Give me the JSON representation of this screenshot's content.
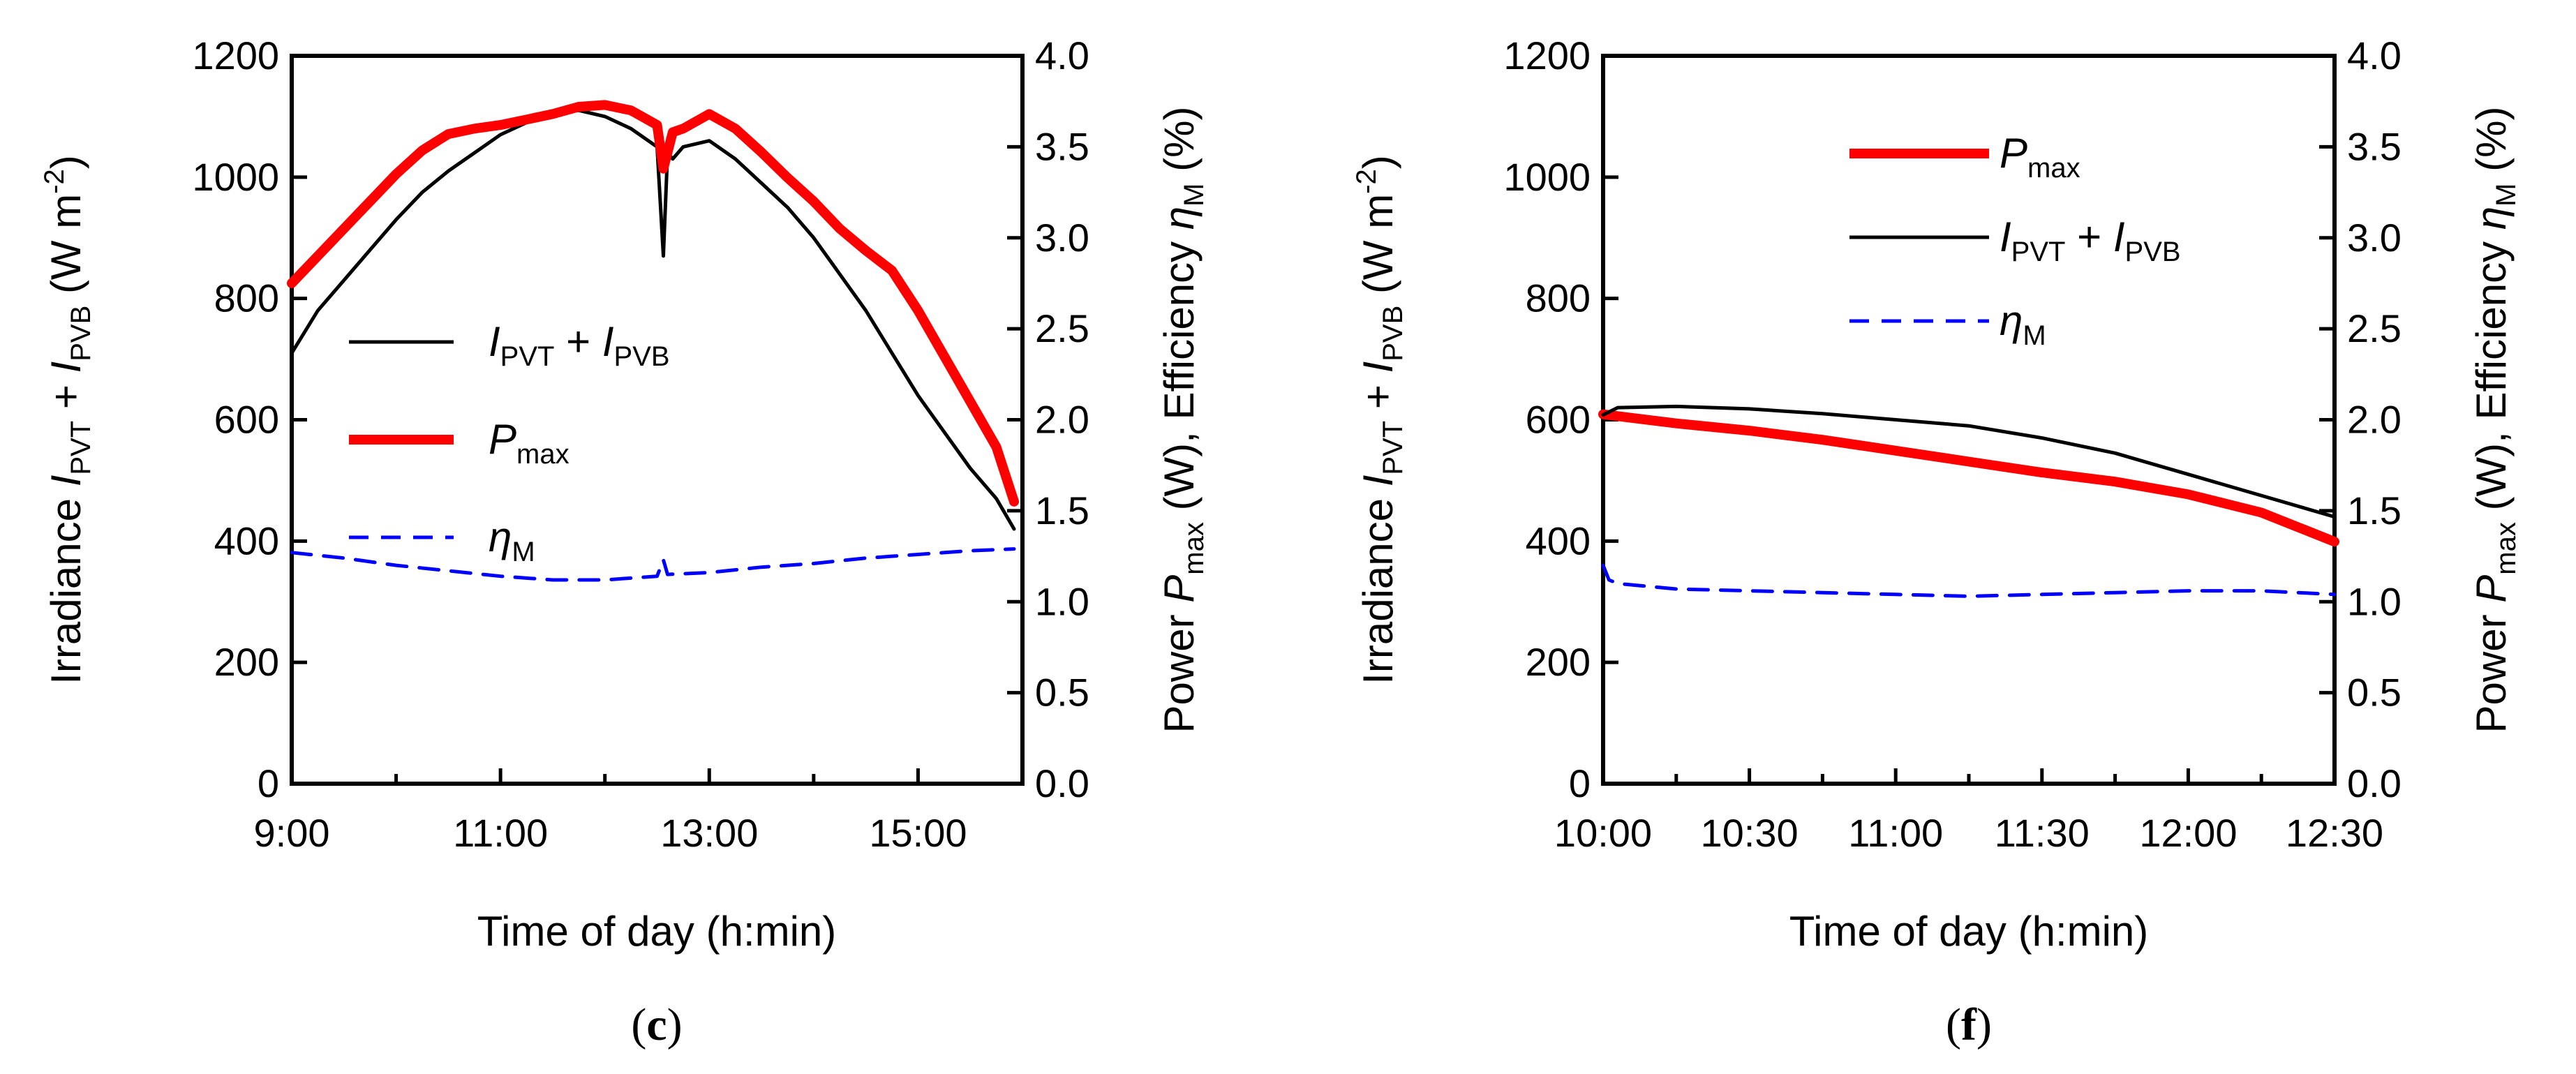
{
  "chart_data": [
    {
      "type": "line",
      "panel_label": "(c)",
      "xlabel": "Time of day (h:min)",
      "ylabel_left": {
        "main": "Irradiance ",
        "i1": "I",
        "s1": "PVT",
        "plus": " + ",
        "i2": "I",
        "s2": "PVB",
        "unit": " (W m",
        "exp": "-2",
        "close": ")"
      },
      "ylabel_right": {
        "pre": "Power ",
        "i1": "P",
        "s1": "max",
        "mid": " (W), Efficiency ",
        "i2": "η",
        "s2": "M",
        "unit": " (%)"
      },
      "x_ticks": [
        "9:00",
        "11:00",
        "13:00",
        "15:00"
      ],
      "x_tick_hours": [
        9,
        11,
        13,
        15
      ],
      "xlim": [
        9,
        16
      ],
      "ylim_left": [
        0,
        1200
      ],
      "ylim_right": [
        0,
        4
      ],
      "y_left_ticks": [
        "0",
        "200",
        "400",
        "600",
        "800",
        "1000",
        "1200"
      ],
      "y_right_ticks": [
        "0.0",
        "0.5",
        "1.0",
        "1.5",
        "2.0",
        "2.5",
        "3.0",
        "3.5",
        "4.0"
      ],
      "legend": [
        {
          "series": "irradiance",
          "italic1": "I",
          "sub1": "PVT",
          "mid": " + ",
          "italic2": "I",
          "sub2": "PVB"
        },
        {
          "series": "pmax",
          "italic1": "P",
          "sub1": "max"
        },
        {
          "series": "eta",
          "italic1": "η",
          "sub1": "M"
        }
      ],
      "series": [
        {
          "key": "irradiance",
          "axis": "left",
          "color": "#000000",
          "style": "solid",
          "x": [
            9.0,
            9.25,
            9.5,
            9.75,
            10.0,
            10.25,
            10.5,
            10.75,
            11.0,
            11.25,
            11.5,
            11.75,
            12.0,
            12.25,
            12.5,
            12.56,
            12.6,
            12.65,
            12.75,
            13.0,
            13.25,
            13.5,
            13.75,
            14.0,
            14.25,
            14.5,
            14.75,
            15.0,
            15.25,
            15.5,
            15.75,
            15.92
          ],
          "y": [
            710,
            780,
            830,
            880,
            930,
            975,
            1010,
            1040,
            1070,
            1090,
            1105,
            1110,
            1100,
            1080,
            1050,
            870,
            1040,
            1030,
            1050,
            1060,
            1030,
            990,
            950,
            900,
            840,
            780,
            710,
            640,
            580,
            520,
            470,
            420
          ]
        },
        {
          "key": "pmax",
          "axis": "right",
          "color": "#ff0000",
          "style": "solid",
          "x": [
            9.0,
            9.25,
            9.5,
            9.75,
            10.0,
            10.25,
            10.5,
            10.75,
            11.0,
            11.25,
            11.5,
            11.75,
            12.0,
            12.25,
            12.5,
            12.56,
            12.65,
            12.75,
            13.0,
            13.25,
            13.5,
            13.75,
            14.0,
            14.25,
            14.5,
            14.75,
            15.0,
            15.25,
            15.5,
            15.75,
            15.92
          ],
          "y": [
            2.75,
            2.9,
            3.05,
            3.2,
            3.35,
            3.48,
            3.57,
            3.6,
            3.62,
            3.65,
            3.68,
            3.72,
            3.73,
            3.7,
            3.62,
            3.38,
            3.58,
            3.6,
            3.68,
            3.6,
            3.47,
            3.33,
            3.2,
            3.05,
            2.93,
            2.82,
            2.6,
            2.35,
            2.1,
            1.85,
            1.55
          ]
        },
        {
          "key": "eta",
          "axis": "right",
          "color": "#0000ff",
          "style": "dashed",
          "x": [
            9.0,
            9.5,
            10.0,
            10.5,
            11.0,
            11.5,
            12.0,
            12.5,
            12.56,
            12.6,
            13.0,
            13.5,
            14.0,
            14.5,
            15.0,
            15.5,
            15.92
          ],
          "y": [
            1.27,
            1.24,
            1.2,
            1.17,
            1.14,
            1.12,
            1.12,
            1.14,
            1.23,
            1.15,
            1.16,
            1.19,
            1.21,
            1.24,
            1.26,
            1.28,
            1.29
          ]
        }
      ]
    },
    {
      "type": "line",
      "panel_label": "(f)",
      "xlabel": "Time of day (h:min)",
      "ylabel_left": {
        "main": "Irradiance ",
        "i1": "I",
        "s1": "PVT",
        "plus": " + ",
        "i2": "I",
        "s2": "PVB",
        "unit": " (W m",
        "exp": "-2",
        "close": ")"
      },
      "ylabel_right": {
        "pre": "Power ",
        "i1": "P",
        "s1": "max",
        "mid": " (W), Efficiency ",
        "i2": "η",
        "s2": "M",
        "unit": " (%)"
      },
      "x_ticks": [
        "10:00",
        "10:30",
        "11:00",
        "11:30",
        "12:00",
        "12:30"
      ],
      "x_tick_hours": [
        10,
        10.5,
        11,
        11.5,
        12,
        12.5
      ],
      "xlim": [
        10,
        12.5
      ],
      "ylim_left": [
        0,
        1200
      ],
      "ylim_right": [
        0,
        4
      ],
      "y_left_ticks": [
        "0",
        "200",
        "400",
        "600",
        "800",
        "1000",
        "1200"
      ],
      "y_right_ticks": [
        "0.0",
        "0.5",
        "1.0",
        "1.5",
        "2.0",
        "2.5",
        "3.0",
        "3.5",
        "4.0"
      ],
      "legend": [
        {
          "series": "pmax",
          "italic1": "P",
          "sub1": "max"
        },
        {
          "series": "irradiance",
          "italic1": "I",
          "sub1": "PVT",
          "mid": " + ",
          "italic2": "I",
          "sub2": "PVB"
        },
        {
          "series": "eta",
          "italic1": "η",
          "sub1": "M"
        }
      ],
      "series": [
        {
          "key": "pmax",
          "axis": "right",
          "color": "#ff0000",
          "style": "solid",
          "x": [
            10.0,
            10.1,
            10.25,
            10.5,
            10.75,
            11.0,
            11.25,
            11.5,
            11.75,
            12.0,
            12.25,
            12.5
          ],
          "y": [
            2.03,
            2.01,
            1.98,
            1.94,
            1.89,
            1.83,
            1.77,
            1.71,
            1.66,
            1.59,
            1.49,
            1.33
          ]
        },
        {
          "key": "irradiance",
          "axis": "left",
          "color": "#000000",
          "style": "solid",
          "x": [
            10.0,
            10.05,
            10.25,
            10.5,
            10.75,
            11.0,
            11.25,
            11.5,
            11.75,
            12.0,
            12.25,
            12.5
          ],
          "y": [
            608,
            620,
            622,
            618,
            610,
            600,
            590,
            570,
            545,
            510,
            475,
            440
          ]
        },
        {
          "key": "eta",
          "axis": "right",
          "color": "#0000ff",
          "style": "dashed",
          "x": [
            10.0,
            10.02,
            10.05,
            10.25,
            10.5,
            10.75,
            11.0,
            11.25,
            11.5,
            11.75,
            12.0,
            12.25,
            12.5
          ],
          "y": [
            1.2,
            1.12,
            1.1,
            1.07,
            1.06,
            1.05,
            1.04,
            1.03,
            1.04,
            1.05,
            1.06,
            1.06,
            1.04
          ]
        }
      ]
    }
  ]
}
